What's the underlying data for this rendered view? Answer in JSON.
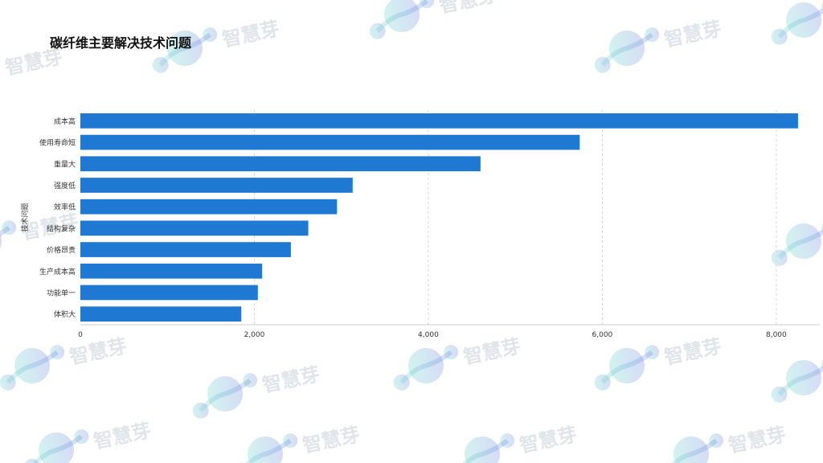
{
  "title": "碳纤维主要解决技术问题",
  "watermark": {
    "text": "智慧芽",
    "colors": [
      "#5fd6c8",
      "#6b7fe0"
    ]
  },
  "colors": {
    "bar": "#1f78d1",
    "grid": "#d6d6d6",
    "axis_text": "#333333"
  },
  "chart_data": {
    "type": "bar",
    "orientation": "horizontal",
    "title": "碳纤维主要解决技术问题",
    "ylabel": "技术问题",
    "xlabel": "",
    "categories": [
      "成本高",
      "使用寿命短",
      "重量大",
      "强度低",
      "效率低",
      "结构复杂",
      "价格昂贵",
      "生产成本高",
      "功能单一",
      "体积大"
    ],
    "values": [
      8250,
      5740,
      4600,
      3130,
      2950,
      2620,
      2420,
      2090,
      2040,
      1850
    ],
    "xlim": [
      0,
      8500
    ],
    "xticks": [
      0,
      2000,
      4000,
      6000,
      8000
    ],
    "xtick_labels": [
      "0",
      "2,000",
      "4,000",
      "6,000",
      "8,000"
    ],
    "grid": true,
    "legend": "none"
  }
}
